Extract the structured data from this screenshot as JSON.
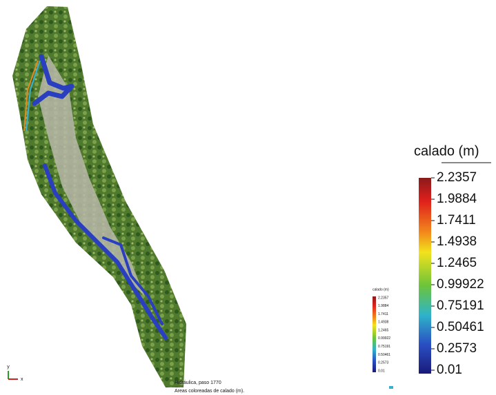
{
  "legend": {
    "title": "calado (m)",
    "labels": [
      "2.2357",
      "1.9884",
      "1.7411",
      "1.4938",
      "1.2465",
      "0.99922",
      "0.75191",
      "0.50461",
      "0.2573",
      "0.01"
    ]
  },
  "caption": {
    "line1": "Hidráulica, paso 1770",
    "line2": "Areas coloreadas de calado (m)."
  },
  "axes": {
    "y": "y",
    "x": "x"
  }
}
